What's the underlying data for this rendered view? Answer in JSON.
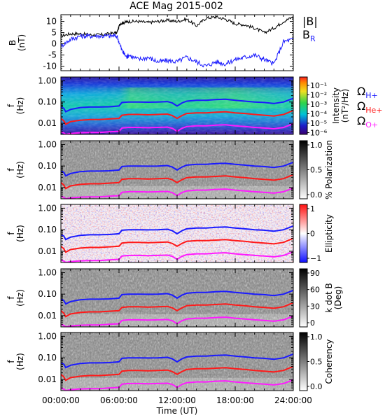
{
  "title": "ACE Mag 2015-002",
  "colors": {
    "black": "#000000",
    "blue": "#1a1aff",
    "red": "#ff1a1a",
    "magenta": "#ff1aff"
  },
  "chart_data": [
    {
      "type": "line",
      "panel": "magnetic-field",
      "ylabel_line1": "B",
      "ylabel_line2": "(nT)",
      "ylim": [
        -12,
        13
      ],
      "yticks": [
        10,
        5,
        0,
        -5,
        -10
      ],
      "series": [
        {
          "name": "|B|",
          "color": "#000000",
          "x": [
            0,
            1,
            2,
            3,
            4,
            5,
            5.8,
            6.1,
            6.5,
            7,
            8,
            9,
            10,
            11,
            12,
            13,
            14,
            15,
            16,
            17,
            18,
            19,
            20,
            21,
            22,
            23,
            24
          ],
          "y": [
            3.5,
            4.5,
            4.5,
            4,
            4,
            4.5,
            5,
            9,
            9.5,
            10,
            10,
            9.5,
            10,
            10.5,
            10,
            11,
            8,
            11.5,
            12,
            11,
            9,
            8.5,
            7,
            5,
            7,
            10,
            12
          ]
        },
        {
          "name": "B",
          "subscript": "R",
          "color": "#1a1aff",
          "x": [
            0,
            1,
            2,
            3,
            4,
            5,
            5.8,
            6.3,
            6.8,
            7,
            8,
            9,
            10,
            11,
            12,
            13,
            14,
            15,
            16,
            17,
            18,
            19,
            20,
            21,
            22,
            23,
            24
          ],
          "y": [
            -1,
            2,
            3.5,
            3.5,
            3.5,
            3.5,
            3.5,
            -3,
            -6,
            -5,
            -7,
            -6,
            -8,
            -7.5,
            -8,
            -6,
            -8,
            -10,
            -8,
            -9,
            -7,
            -6,
            -5,
            -7,
            -9,
            1,
            2
          ]
        }
      ]
    },
    {
      "type": "heatmap",
      "panel": "power-spectrum",
      "ylabel_line1": "f",
      "ylabel_line2": "(Hz)",
      "colorbar": {
        "label": "Intensity",
        "units": "(nT²/Hz)",
        "ticks": [
          "10⁻¹",
          "10⁻²",
          "10⁻³",
          "10⁻⁴",
          "10⁻⁵",
          "10⁻⁶"
        ]
      },
      "legend": [
        "ΩH+",
        "ΩHe+",
        "ΩO+"
      ]
    },
    {
      "type": "heatmap",
      "panel": "polarization",
      "ylabel_line1": "f",
      "ylabel_line2": "(Hz)",
      "colorbar": {
        "label": "% Polarization",
        "ticks": [
          "1.0",
          "0.5",
          "0.0"
        ]
      }
    },
    {
      "type": "heatmap",
      "panel": "ellipticity",
      "ylabel_line1": "f",
      "ylabel_line2": "(Hz)",
      "colorbar": {
        "label": "Ellipticity",
        "ticks": [
          "1",
          "0",
          "−1"
        ]
      }
    },
    {
      "type": "heatmap",
      "panel": "wave-normal-angle",
      "ylabel_line1": "f",
      "ylabel_line2": "(Hz)",
      "colorbar": {
        "label_line1": "k dot B",
        "label_line2": "(Deg)",
        "ticks": [
          "90",
          "60",
          "30",
          "0"
        ]
      }
    },
    {
      "type": "heatmap",
      "panel": "coherency",
      "ylabel_line1": "f",
      "ylabel_line2": "(Hz)",
      "colorbar": {
        "label": "Coherency",
        "ticks": [
          "1.0",
          "0.5",
          "0.0"
        ]
      },
      "xticks": [
        "00:00:00",
        "06:00:00",
        "12:00:00",
        "18:00:00",
        "24:00:00"
      ],
      "xlabel": "Time (UT)"
    }
  ],
  "spectral_axis": {
    "yticks": [
      "1.00",
      "0.10",
      "0.01"
    ],
    "ylim": [
      0.003,
      1.5
    ]
  },
  "gyrofrequency_lines": [
    {
      "ion": "H+",
      "color": "#1a1aff",
      "x": [
        0,
        0.3,
        0.5,
        1,
        2,
        3,
        4,
        5,
        6,
        6.3,
        7,
        8,
        9,
        10,
        11,
        11.5,
        12,
        12.5,
        13,
        14,
        15,
        16,
        17,
        18,
        19,
        20,
        21,
        22,
        23,
        24
      ],
      "y": [
        0.06,
        0.05,
        0.035,
        0.045,
        0.055,
        0.058,
        0.058,
        0.06,
        0.065,
        0.095,
        0.1,
        0.1,
        0.098,
        0.1,
        0.105,
        0.09,
        0.065,
        0.09,
        0.11,
        0.12,
        0.12,
        0.13,
        0.135,
        0.12,
        0.11,
        0.1,
        0.095,
        0.085,
        0.1,
        0.15
      ]
    },
    {
      "ion": "He+",
      "color": "#ff1a1a",
      "x": [
        0,
        0.3,
        0.5,
        1,
        2,
        3,
        4,
        5,
        6,
        6.3,
        7,
        8,
        9,
        10,
        11,
        11.5,
        12,
        12.5,
        13,
        14,
        15,
        16,
        17,
        18,
        19,
        20,
        21,
        22,
        23,
        24
      ],
      "y": [
        0.017,
        0.013,
        0.009,
        0.012,
        0.014,
        0.015,
        0.015,
        0.016,
        0.017,
        0.024,
        0.026,
        0.026,
        0.025,
        0.026,
        0.027,
        0.023,
        0.017,
        0.023,
        0.029,
        0.031,
        0.031,
        0.033,
        0.035,
        0.031,
        0.029,
        0.026,
        0.024,
        0.022,
        0.026,
        0.04
      ]
    },
    {
      "ion": "O+",
      "color": "#ff1aff",
      "x": [
        0,
        0.3,
        0.5,
        1,
        2,
        3,
        4,
        5,
        6,
        6.3,
        7,
        8,
        9,
        10,
        11,
        11.5,
        12,
        12.5,
        13,
        14,
        15,
        16,
        17,
        18,
        19,
        20,
        21,
        22,
        23,
        24
      ],
      "y": [
        0.004,
        0.0035,
        0.003,
        0.0033,
        0.0036,
        0.0037,
        0.0037,
        0.004,
        0.0042,
        0.006,
        0.0064,
        0.0064,
        0.0062,
        0.0064,
        0.0066,
        0.0058,
        0.0042,
        0.0058,
        0.007,
        0.0076,
        0.0076,
        0.0082,
        0.0085,
        0.0076,
        0.007,
        0.0064,
        0.006,
        0.0055,
        0.0064,
        0.0095
      ]
    }
  ]
}
